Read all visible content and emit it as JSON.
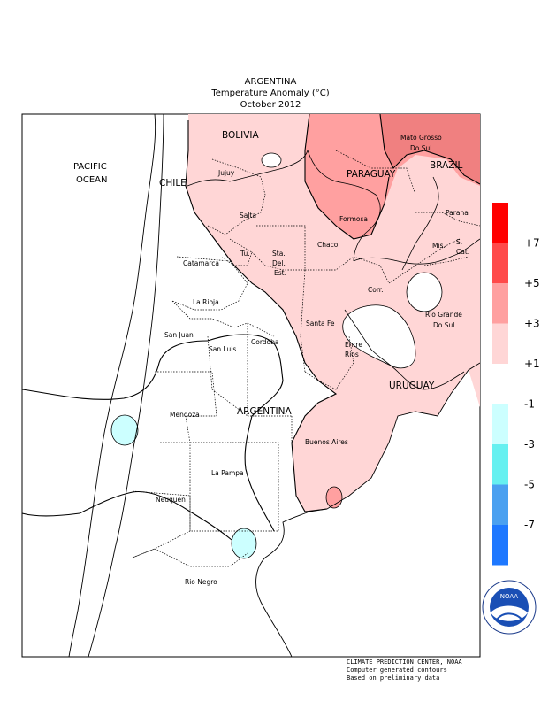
{
  "header": {
    "title_line1": "ARGENTINA",
    "title_line2": "Temperature Anomaly (°C)",
    "title_line3": "October 2012"
  },
  "labels": {
    "pacific1": "PACIFIC",
    "pacific2": "OCEAN",
    "chile": "CHILE",
    "bolivia": "BOLIVIA",
    "paraguay": "PARAGUAY",
    "brazil": "BRAZIL",
    "uruguay": "URUGUAY",
    "argentina": "ARGENTINA",
    "matogrosso1": "Mato Grosso",
    "matogrosso2": "Do Sul",
    "parana": "Parana",
    "jujuy": "Jujuy",
    "salta": "Salta",
    "formosa": "Formosa",
    "chaco": "Chaco",
    "misiones": "Mis.",
    "scat1": "S.",
    "scat2": "Cat.",
    "tucuman": "Tu.",
    "sde1": "Sta.",
    "sde2": "Del.",
    "sde3": "Est.",
    "catamarca": "Catamarca",
    "corrientes": "Corr.",
    "larioja": "La Rioja",
    "riogrande1": "Rio Grande",
    "riogrande2": "Do Sul",
    "sanjuan": "San Juan",
    "cordoba": "Cordoba",
    "santafe": "Santa Fe",
    "entrerios1": "Entre",
    "entrerios2": "Rios",
    "sanluis": "San Luis",
    "mendoza": "Mendoza",
    "buenosaires": "Buenos Aires",
    "lapampa": "La Pampa",
    "neuquen": "Neuquen",
    "rionegro": "Rio Negro"
  },
  "legend": {
    "ticks": [
      "+7",
      "+5",
      "+3",
      "+1",
      "-1",
      "-3",
      "-5",
      "-7"
    ],
    "colors": [
      "#ff0000",
      "#ff4a4a",
      "#ffa0a0",
      "#ffd6d6",
      "#ffffff",
      "#ccffff",
      "#66f0f0",
      "#4aa0f0",
      "#1e78ff"
    ]
  },
  "anomaly_colors": {
    "plus1_to_3": "#ffd6d6",
    "plus3_to_5": "#ffa0a0",
    "plus5_to_7": "#f08080",
    "minus1_to_3": "#ccffff"
  },
  "logo": {
    "text": "NOAA"
  },
  "credits": {
    "line1": "CLIMATE PREDICTION CENTER, NOAA",
    "line2": "Computer generated contours",
    "line3": "Based on preliminary data"
  }
}
